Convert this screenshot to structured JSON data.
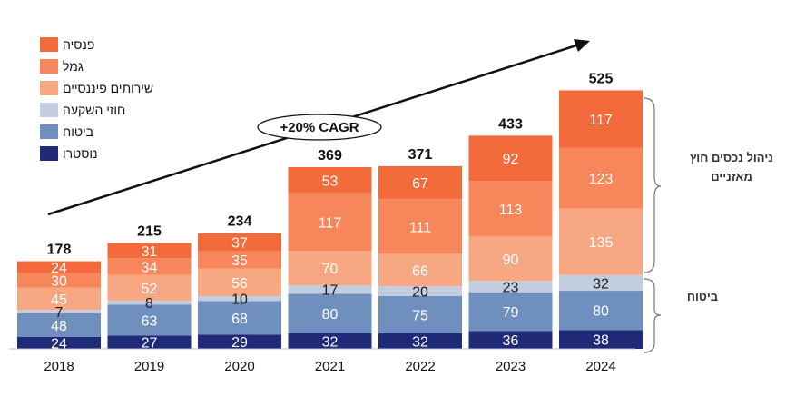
{
  "chart_data": {
    "type": "bar",
    "stacked": true,
    "categories": [
      "2018",
      "2019",
      "2020",
      "2021",
      "2022",
      "2023",
      "2024"
    ],
    "series": [
      {
        "name": "נוסטרו",
        "color": "#1f2a78",
        "values": [
          24,
          27,
          29,
          32,
          32,
          36,
          38
        ]
      },
      {
        "name": "ביטוח",
        "color": "#6f8fbf",
        "values": [
          48,
          63,
          68,
          80,
          75,
          79,
          80
        ]
      },
      {
        "name": "חוזי השקעה",
        "color": "#c3cde0",
        "values": [
          7,
          8,
          10,
          17,
          20,
          23,
          32
        ]
      },
      {
        "name": "שירותים פיננסיים",
        "color": "#f8a783",
        "values": [
          45,
          52,
          56,
          70,
          66,
          90,
          135
        ]
      },
      {
        "name": "גמל",
        "color": "#f7865b",
        "values": [
          30,
          34,
          35,
          117,
          111,
          113,
          123
        ]
      },
      {
        "name": "פנסיה",
        "color": "#f36a3b",
        "values": [
          24,
          31,
          37,
          53,
          67,
          92,
          117
        ]
      }
    ],
    "totals": [
      178,
      215,
      234,
      369,
      371,
      433,
      525
    ],
    "ylim": [
      0,
      560
    ],
    "grid": false,
    "legend_position": "top-left",
    "annotation": "+20% CAGR",
    "brackets": [
      {
        "label": "ניהול נכסים חוץ מאזניים",
        "series": [
          "שירותים פיננסיים",
          "גמל",
          "פנסיה"
        ]
      },
      {
        "label": "ביטוח",
        "series": [
          "נוסטרו",
          "ביטוח",
          "חוזי השקעה"
        ]
      }
    ]
  }
}
